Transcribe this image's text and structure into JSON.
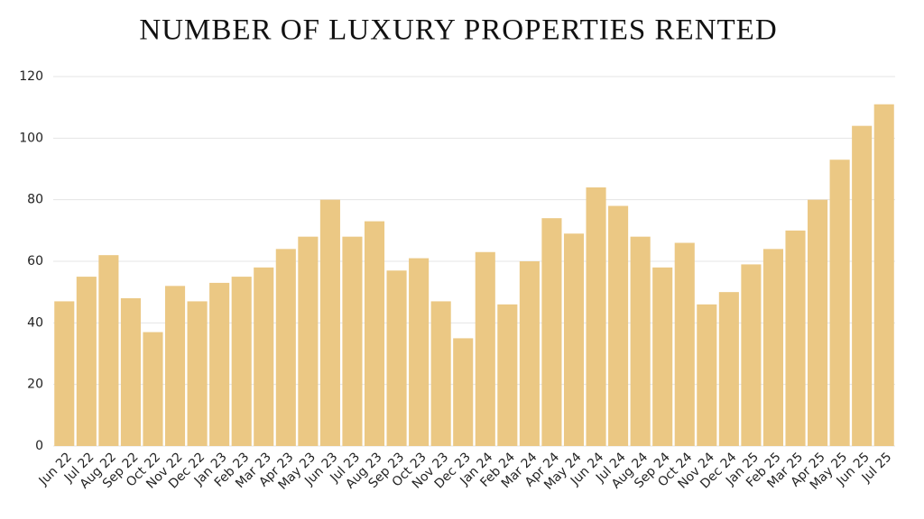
{
  "chart_data": {
    "type": "bar",
    "title": "NUMBER OF LUXURY PROPERTIES RENTED",
    "categories": [
      "Jun 22",
      "Jul 22",
      "Aug 22",
      "Sep 22",
      "Oct 22",
      "Nov 22",
      "Dec 22",
      "Jan 23",
      "Feb 23",
      "Mar 23",
      "Apr 23",
      "May 23",
      "Jun 23",
      "Jul 23",
      "Aug 23",
      "Sep 23",
      "Oct 23",
      "Nov 23",
      "Dec 23",
      "Jan 24",
      "Feb 24",
      "Mar 24",
      "Apr 24",
      "May 24",
      "Jun 24",
      "Jul 24",
      "Aug 24",
      "Sep 24",
      "Oct 24",
      "Nov 24",
      "Dec 24",
      "Jan 25",
      "Feb 25",
      "Mar 25",
      "Apr 25",
      "May 25",
      "Jun 25",
      "Jul 25"
    ],
    "values": [
      47,
      55,
      62,
      48,
      37,
      52,
      47,
      53,
      55,
      58,
      64,
      68,
      80,
      68,
      73,
      57,
      61,
      47,
      35,
      63,
      46,
      60,
      74,
      69,
      84,
      78,
      68,
      58,
      66,
      46,
      50,
      59,
      64,
      70,
      80,
      93,
      104,
      111
    ],
    "color": "#ebc884",
    "ylim": [
      0,
      120
    ],
    "yticks": [
      0,
      20,
      40,
      60,
      80,
      100,
      120
    ],
    "grid": true
  }
}
